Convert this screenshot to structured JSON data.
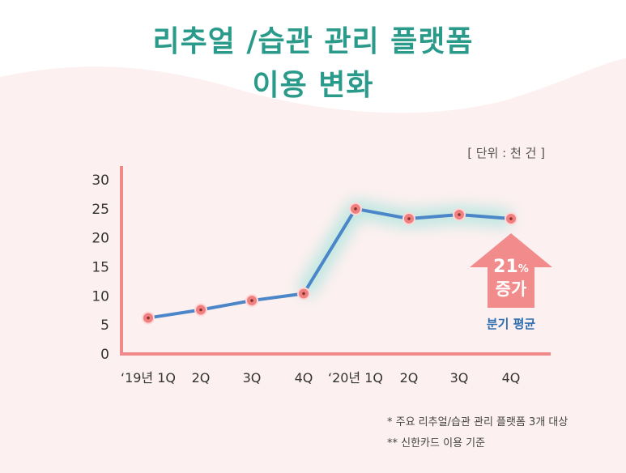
{
  "title_line1": "리추얼 /습관 관리 플랫폼",
  "title_line2": "이용 변화",
  "unit_label": "[ 단위 : 천 건 ]",
  "notes": [
    "* 주요 리추얼/습관 관리 플랫폼 3개 대상",
    "** 신한카드 이용 기준"
  ],
  "annotation": {
    "value": "21",
    "unit": "%",
    "text": "증가",
    "caption": "분기 평균"
  },
  "colors": {
    "title": "#2a9a8a",
    "line": "#4a86c8",
    "marker": "#f07f7f",
    "axis": "#f08a8a",
    "arrow": "#f28c8c",
    "caption": "#2e6eb0"
  },
  "chart_data": {
    "type": "line",
    "categories": [
      "‘19년 1Q",
      "2Q",
      "3Q",
      "4Q",
      "‘20년 1Q",
      "2Q",
      "3Q",
      "4Q"
    ],
    "values": [
      6.2,
      7.6,
      9.2,
      10.4,
      25.0,
      23.3,
      24.0,
      23.3
    ],
    "ylim": [
      0,
      30
    ],
    "yticks": [
      0,
      5,
      10,
      15,
      20,
      25,
      30
    ],
    "xlabel": "",
    "ylabel": "",
    "grid": false
  }
}
